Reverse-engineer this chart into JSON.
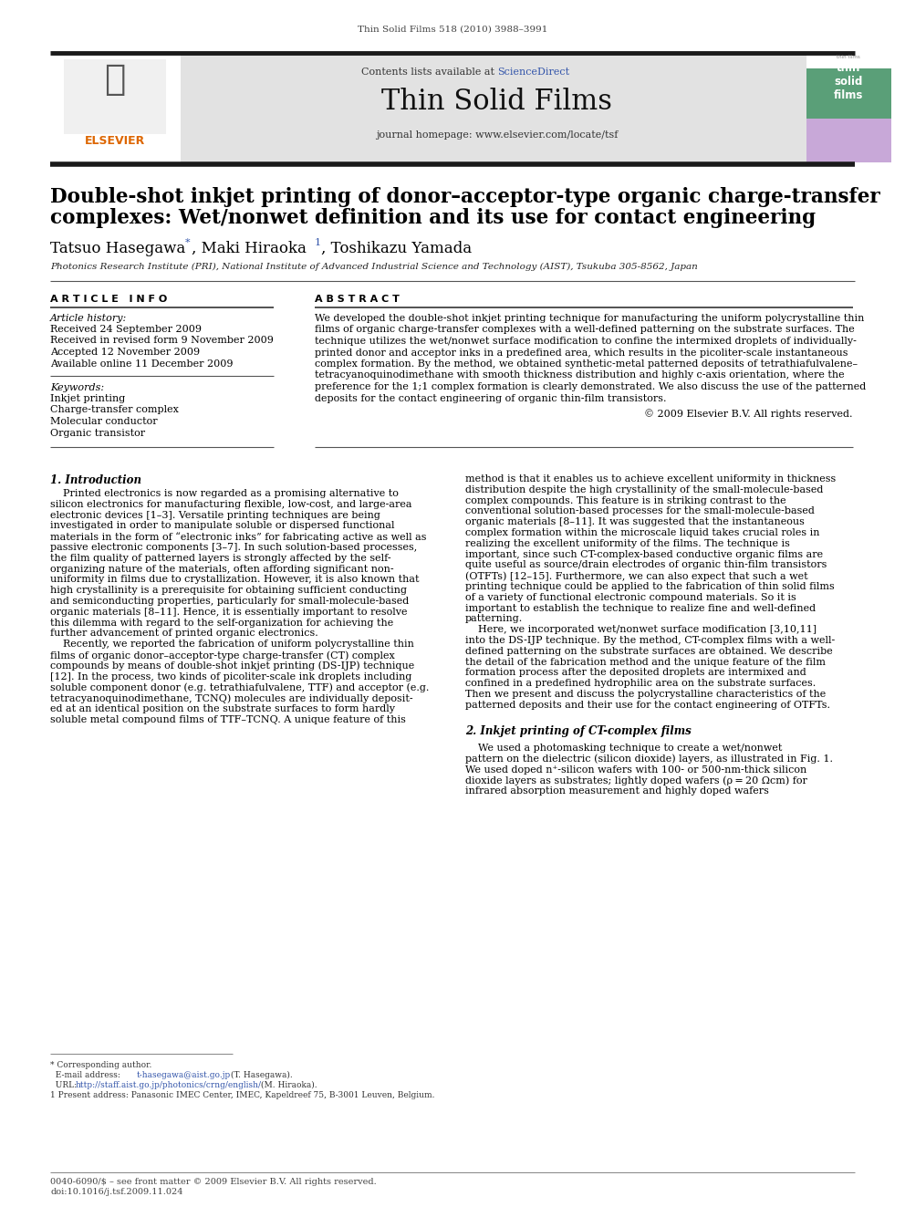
{
  "page_title": "Thin Solid Films 518 (2010) 3988–3991",
  "journal_name": "Thin Solid Films",
  "journal_homepage": "journal homepage: www.elsevier.com/locate/tsf",
  "contents_line_pre": "Contents lists available at ",
  "contents_line_link": "ScienceDirect",
  "article_title_line1": "Double-shot inkjet printing of donor–acceptor-type organic charge-transfer",
  "article_title_line2": "complexes: Wet/nonwet definition and its use for contact engineering",
  "author1": "Tatsuo Hasegawa",
  "author2": "Maki Hiraoka",
  "author3": "Toshikazu Yamada",
  "affiliation": "Photonics Research Institute (PRI), National Institute of Advanced Industrial Science and Technology (AIST), Tsukuba 305-8562, Japan",
  "article_info_header": "A R T I C L E   I N F O",
  "abstract_header": "A B S T R A C T",
  "article_history_header": "Article history:",
  "article_history": [
    "Received 24 September 2009",
    "Received in revised form 9 November 2009",
    "Accepted 12 November 2009",
    "Available online 11 December 2009"
  ],
  "keywords_header": "Keywords:",
  "keywords": [
    "Inkjet printing",
    "Charge-transfer complex",
    "Molecular conductor",
    "Organic transistor"
  ],
  "abstract_text": "We developed the double-shot inkjet printing technique for manufacturing the uniform polycrystalline thin\nfilms of organic charge-transfer complexes with a well-defined patterning on the substrate surfaces. The\ntechnique utilizes the wet/nonwet surface modification to confine the intermixed droplets of individually-\nprinted donor and acceptor inks in a predefined area, which results in the picoliter-scale instantaneous\ncomplex formation. By the method, we obtained synthetic-metal patterned deposits of tetrathiafulvalene–\ntetracyanoquinodimethane with smooth thickness distribution and highly c-axis orientation, where the\npreference for the 1;1 complex formation is clearly demonstrated. We also discuss the use of the patterned\ndeposits for the contact engineering of organic thin-film transistors.",
  "copyright": "© 2009 Elsevier B.V. All rights reserved.",
  "section1_title": "1. Introduction",
  "col1_text": "    Printed electronics is now regarded as a promising alternative to\nsilicon electronics for manufacturing flexible, low-cost, and large-area\nelectronic devices [1–3]. Versatile printing techniques are being\ninvestigated in order to manipulate soluble or dispersed functional\nmaterials in the form of “electronic inks” for fabricating active as well as\npassive electronic components [3–7]. In such solution-based processes,\nthe film quality of patterned layers is strongly affected by the self-\norganizing nature of the materials, often affording significant non-\nuniformity in films due to crystallization. However, it is also known that\nhigh crystallinity is a prerequisite for obtaining sufficient conducting\nand semiconducting properties, particularly for small-molecule-based\norganic materials [8–11]. Hence, it is essentially important to resolve\nthis dilemma with regard to the self-organization for achieving the\nfurther advancement of printed organic electronics.\n    Recently, we reported the fabrication of uniform polycrystalline thin\nfilms of organic donor–acceptor-type charge-transfer (CT) complex\ncompounds by means of double-shot inkjet printing (DS-IJP) technique\n[12]. In the process, two kinds of picoliter-scale ink droplets including\nsoluble component donor (e.g. tetrathiafulvalene, TTF) and acceptor (e.g.\ntetracyanoquinodimethane, TCNQ) molecules are individually deposit-\ned at an identical position on the substrate surfaces to form hardly\nsoluble metal compound films of TTF–TCNQ. A unique feature of this",
  "col2_text": "method is that it enables us to achieve excellent uniformity in thickness\ndistribution despite the high crystallinity of the small-molecule-based\ncomplex compounds. This feature is in striking contrast to the\nconventional solution-based processes for the small-molecule-based\norganic materials [8–11]. It was suggested that the instantaneous\ncomplex formation within the microscale liquid takes crucial roles in\nrealizing the excellent uniformity of the films. The technique is\nimportant, since such CT-complex-based conductive organic films are\nquite useful as source/drain electrodes of organic thin-film transistors\n(OTFTs) [12–15]. Furthermore, we can also expect that such a wet\nprinting technique could be applied to the fabrication of thin solid films\nof a variety of functional electronic compound materials. So it is\nimportant to establish the technique to realize fine and well-defined\npatterning.\n    Here, we incorporated wet/nonwet surface modification [3,10,11]\ninto the DS-IJP technique. By the method, CT-complex films with a well-\ndefined patterning on the substrate surfaces are obtained. We describe\nthe detail of the fabrication method and the unique feature of the film\nformation process after the deposited droplets are intermixed and\nconfined in a predefined hydrophilic area on the substrate surfaces.\nThen we present and discuss the polycrystalline characteristics of the\npatterned deposits and their use for the contact engineering of OTFTs.\n\n2. Inkjet printing of CT-complex films\n\n    We used a photomasking technique to create a wet/nonwet\npattern on the dielectric (silicon dioxide) layers, as illustrated in Fig. 1.\nWe used doped n⁺-silicon wafers with 100- or 500-nm-thick silicon\ndioxide layers as substrates; lightly doped wafers (ρ = 20 Ωcm) for\ninfrared absorption measurement and highly doped wafers",
  "footnote_sep": "___________________",
  "fn1": "* Corresponding author.",
  "fn2_pre": "  E-mail address: ",
  "fn2_link": "t-hasegawa@aist.go.jp",
  "fn2_post": " (T. Hasegawa).",
  "fn3_pre": "  URL: ",
  "fn3_link": "http://staff.aist.go.jp/photonics/crng/english/",
  "fn3_post": " (M. Hiraoka).",
  "fn4": "1 Present address: Panasonic IMEC Center, IMEC, Kapeldreef 75, B-3001 Leuven, Belgium.",
  "footer_left": "0040-6090/$ – see front matter © 2009 Elsevier B.V. All rights reserved.",
  "footer_doi": "doi:10.1016/j.tsf.2009.11.024",
  "bg_color": "#ffffff",
  "header_bg": "#e2e2e2",
  "bar_color": "#1a1a1a",
  "scidir_color": "#3355aa",
  "link_color": "#3355aa",
  "elsevier_orange": "#dd6600",
  "cover_green": "#5a9f78",
  "cover_purple": "#c8a8d8"
}
